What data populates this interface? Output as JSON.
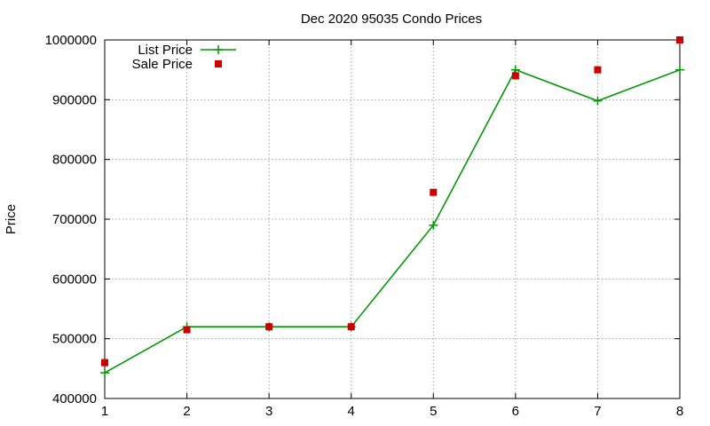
{
  "chart_data": {
    "type": "line",
    "title": "Dec 2020 95035 Condo Prices",
    "xlabel": "",
    "ylabel": "Price",
    "x": [
      1,
      2,
      3,
      4,
      5,
      6,
      7,
      8
    ],
    "xlim": [
      1,
      8
    ],
    "ylim": [
      400000,
      1000000
    ],
    "yticks": [
      "400000",
      "500000",
      "600000",
      "700000",
      "800000",
      "900000",
      "1000000"
    ],
    "xticks": [
      "1",
      "2",
      "3",
      "4",
      "5",
      "6",
      "7",
      "8"
    ],
    "grid": true,
    "legend_position": "top-left",
    "series": [
      {
        "name": "List Price",
        "style": "line+cross",
        "color": "#009900",
        "values": [
          443000,
          520000,
          520000,
          520000,
          690000,
          950000,
          898000,
          950000
        ]
      },
      {
        "name": "Sale Price",
        "style": "square-points",
        "color": "#cc0000",
        "values": [
          460000,
          515000,
          520000,
          520000,
          745000,
          940000,
          950000,
          1000000
        ]
      }
    ]
  }
}
